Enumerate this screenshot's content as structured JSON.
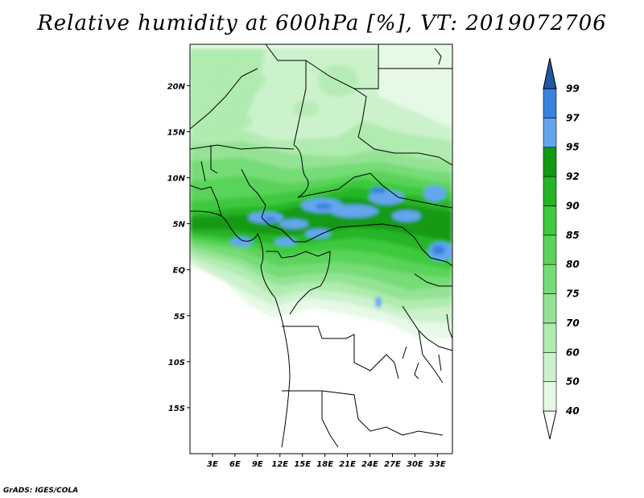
{
  "title": "Relative humidity at 600hPa [%], VT: 2019072706",
  "credit": "GrADS: IGES/COLA",
  "map": {
    "lon_range": [
      0,
      35
    ],
    "lat_range": [
      -20,
      24.5
    ],
    "lat_ticks": [
      {
        "value": 20,
        "label": "20N"
      },
      {
        "value": 15,
        "label": "15N"
      },
      {
        "value": 10,
        "label": "10N"
      },
      {
        "value": 5,
        "label": "5N"
      },
      {
        "value": 0,
        "label": "EQ"
      },
      {
        "value": -5,
        "label": "5S"
      },
      {
        "value": -10,
        "label": "10S"
      },
      {
        "value": -15,
        "label": "15S"
      }
    ],
    "lon_ticks": [
      {
        "value": 3,
        "label": "3E"
      },
      {
        "value": 6,
        "label": "6E"
      },
      {
        "value": 9,
        "label": "9E"
      },
      {
        "value": 12,
        "label": "12E"
      },
      {
        "value": 15,
        "label": "15E"
      },
      {
        "value": 18,
        "label": "18E"
      },
      {
        "value": 21,
        "label": "21E"
      },
      {
        "value": 24,
        "label": "24E"
      },
      {
        "value": 27,
        "label": "27E"
      },
      {
        "value": 30,
        "label": "30E"
      },
      {
        "value": 33,
        "label": "33E"
      }
    ]
  },
  "colorbar": {
    "levels": [
      "40",
      "50",
      "60",
      "70",
      "75",
      "80",
      "85",
      "90",
      "92",
      "95",
      "97",
      "99"
    ],
    "colors": [
      "#e6f9e6",
      "#ccf2cc",
      "#b0ebb0",
      "#94e394",
      "#76dc76",
      "#5ad35a",
      "#3ec93e",
      "#25b525",
      "#139a13",
      "#63a6ee",
      "#3a82e0",
      "#2165c8",
      "#1f5aa0"
    ]
  }
}
